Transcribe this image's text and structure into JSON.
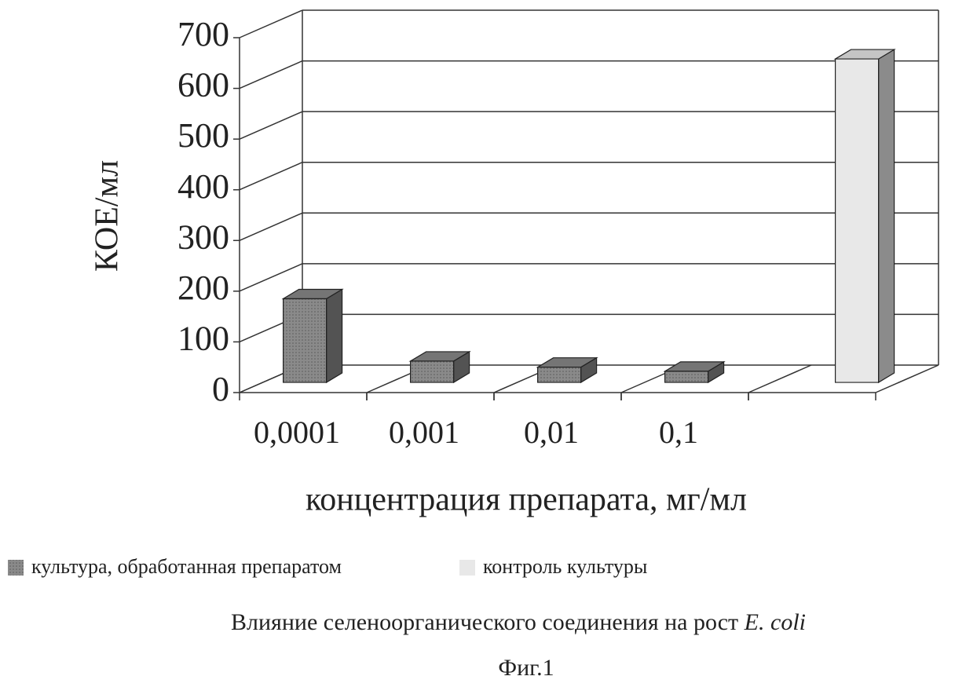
{
  "chart_data": {
    "type": "bar3d",
    "title": "Влияние селеноорганического соединения на рост",
    "title_organism": "E. coli",
    "caption": "Фиг.1",
    "y_label": "КОЕ/мл",
    "x_label": "концентрация препарата, мг/мл",
    "categories": [
      "0,0001",
      "0,001",
      "0,01",
      "0,1",
      null
    ],
    "series": [
      {
        "name": "культура, обработанная препаратом",
        "color": "#8a8a8a",
        "values": [
          165,
          42,
          30,
          22,
          null
        ]
      },
      {
        "name": "контроль культуры",
        "color": "#e8e8e8",
        "values": [
          null,
          null,
          null,
          null,
          638
        ]
      }
    ],
    "ylim": [
      0,
      700
    ],
    "yticks": [
      0,
      100,
      200,
      300,
      400,
      500,
      600,
      700
    ],
    "grid": true
  }
}
